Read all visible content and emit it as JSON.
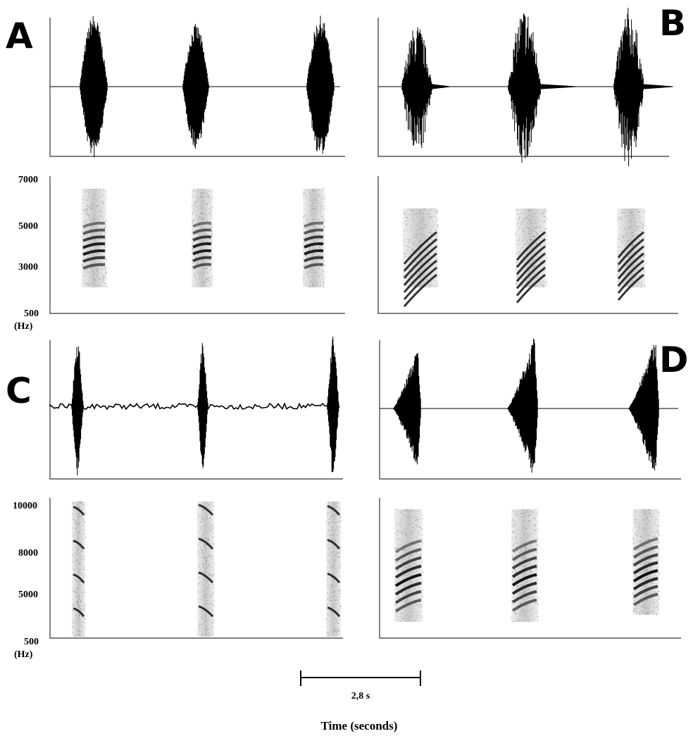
{
  "panels": [
    {
      "letter": "A"
    },
    {
      "letter": "B"
    },
    {
      "letter": "C"
    },
    {
      "letter": "D"
    }
  ],
  "spectrogram_ticks": {
    "top": [
      "7000",
      "5000",
      "3000",
      "500"
    ],
    "bottom": [
      "10000",
      "8000",
      "5000",
      "500"
    ]
  },
  "unit_label": "(Hz)",
  "scale_bar": {
    "label": "2,8 s",
    "seconds": 2.8
  },
  "xlabel": "Time (seconds)",
  "colors": {
    "ink": "#000000",
    "axis": "#333333",
    "background": "#ffffff"
  },
  "chart_data": [
    {
      "type": "waveform",
      "panel": "A",
      "calls": 3,
      "call_shape": "symmetric"
    },
    {
      "type": "heatmap",
      "panel": "A",
      "yticks": [
        7000,
        5000,
        3000,
        500
      ],
      "ylabel": "(Hz)",
      "calls": 3
    },
    {
      "type": "waveform",
      "panel": "B",
      "calls": 3,
      "call_shape": "irregular"
    },
    {
      "type": "heatmap",
      "panel": "B",
      "calls": 3
    },
    {
      "type": "waveform",
      "panel": "C",
      "calls": 3,
      "call_shape": "narrow pulse",
      "baseline": "noisy"
    },
    {
      "type": "heatmap",
      "panel": "C",
      "yticks": [
        10000,
        8000,
        5000,
        500
      ],
      "ylabel": "(Hz)",
      "calls": 3
    },
    {
      "type": "waveform",
      "panel": "D",
      "calls": 3,
      "call_shape": "rising then abrupt decay"
    },
    {
      "type": "heatmap",
      "panel": "D",
      "calls": 3
    }
  ]
}
